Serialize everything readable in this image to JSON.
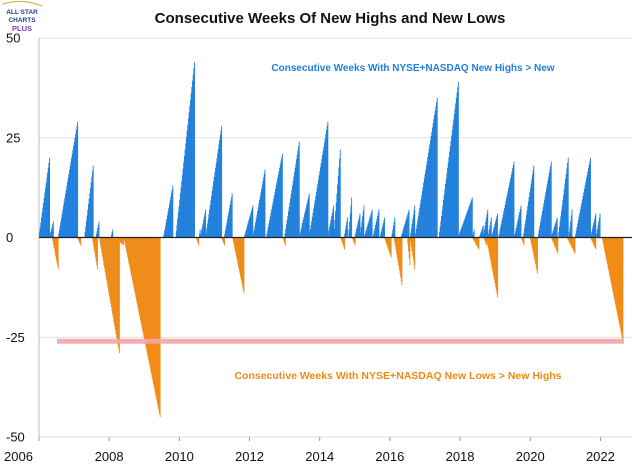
{
  "logo": {
    "line1": "ALL STAR",
    "line2": "CHARTS",
    "line3": "PLUS"
  },
  "chart_data": {
    "type": "bar",
    "title": "Consecutive Weeks Of New Highs and New Lows",
    "xlabel": "",
    "ylabel": "",
    "xlim": [
      2006.0,
      2022.9
    ],
    "ylim": [
      -50,
      50
    ],
    "x_ticks": [
      "2006",
      "2008",
      "2010",
      "2012",
      "2014",
      "2016",
      "2018",
      "2020",
      "2022"
    ],
    "y_ticks": [
      "50",
      "25",
      "0",
      "-25",
      "-50"
    ],
    "reference_line": {
      "value": -26,
      "color": "#f2a6a6"
    },
    "colors": {
      "positive": "#1f7fdc",
      "negative": "#f08a14",
      "zero_line": "#222222"
    },
    "annotations": {
      "positive": "Consecutive Weeks With NYSE+NASDAQ New Highs > New",
      "negative": "Consecutive Weeks With NYSE+NASDAQ New Lows > New Highs"
    },
    "series": [
      {
        "name": "Consecutive Weeks With NYSE+NASDAQ New Highs > New",
        "sign": 1,
        "runs": [
          [
            2006.0,
            2006.3,
            20
          ],
          [
            2006.3,
            2006.42,
            4
          ],
          [
            2006.55,
            2007.1,
            29
          ],
          [
            2007.3,
            2007.55,
            18
          ],
          [
            2007.62,
            2007.72,
            4
          ],
          [
            2008.05,
            2008.1,
            2
          ],
          [
            2009.55,
            2009.82,
            13
          ],
          [
            2009.9,
            2010.43,
            44
          ],
          [
            2010.56,
            2010.6,
            2
          ],
          [
            2010.6,
            2010.75,
            7
          ],
          [
            2010.75,
            2011.22,
            28
          ],
          [
            2011.28,
            2011.52,
            11
          ],
          [
            2011.85,
            2012.1,
            8
          ],
          [
            2012.1,
            2012.45,
            17
          ],
          [
            2012.48,
            2012.95,
            21
          ],
          [
            2013.0,
            2013.42,
            24
          ],
          [
            2013.42,
            2013.7,
            11
          ],
          [
            2013.7,
            2014.23,
            29
          ],
          [
            2014.23,
            2014.4,
            8
          ],
          [
            2014.4,
            2014.6,
            22
          ],
          [
            2014.7,
            2014.8,
            5
          ],
          [
            2014.82,
            2014.92,
            10
          ],
          [
            2015.0,
            2015.15,
            6
          ],
          [
            2015.15,
            2015.27,
            8
          ],
          [
            2015.27,
            2015.5,
            7
          ],
          [
            2015.52,
            2015.7,
            7
          ],
          [
            2015.72,
            2015.85,
            5
          ],
          [
            2016.05,
            2016.15,
            5
          ],
          [
            2016.32,
            2016.55,
            7
          ],
          [
            2016.58,
            2016.72,
            8
          ],
          [
            2016.72,
            2017.35,
            35
          ],
          [
            2017.4,
            2017.95,
            39
          ],
          [
            2017.95,
            2018.35,
            10
          ],
          [
            2018.35,
            2018.4,
            2
          ],
          [
            2018.55,
            2018.66,
            3
          ],
          [
            2018.66,
            2018.8,
            7
          ],
          [
            2018.8,
            2018.9,
            5
          ],
          [
            2018.9,
            2019.08,
            6
          ],
          [
            2019.1,
            2019.55,
            19
          ],
          [
            2019.55,
            2019.75,
            8
          ],
          [
            2019.8,
            2020.1,
            18
          ],
          [
            2020.22,
            2020.6,
            19
          ],
          [
            2020.6,
            2020.78,
            5
          ],
          [
            2020.8,
            2021.08,
            20
          ],
          [
            2021.1,
            2021.2,
            7
          ],
          [
            2021.28,
            2021.72,
            20
          ],
          [
            2021.72,
            2021.88,
            6
          ],
          [
            2021.88,
            2022.0,
            6
          ]
        ]
      },
      {
        "name": "Consecutive Weeks With NYSE+NASDAQ New Lows > New Highs",
        "sign": -1,
        "runs": [
          [
            2006.38,
            2006.55,
            8
          ],
          [
            2007.1,
            2007.2,
            2
          ],
          [
            2007.52,
            2007.68,
            8
          ],
          [
            2007.72,
            2008.3,
            29
          ],
          [
            2008.2,
            2008.42,
            2
          ],
          [
            2008.42,
            2009.45,
            45
          ],
          [
            2010.48,
            2010.56,
            2
          ],
          [
            2011.2,
            2011.3,
            2
          ],
          [
            2011.52,
            2011.85,
            14
          ],
          [
            2012.95,
            2013.02,
            2
          ],
          [
            2014.6,
            2014.72,
            3
          ],
          [
            2014.92,
            2015.02,
            2
          ],
          [
            2015.85,
            2016.05,
            5
          ],
          [
            2016.12,
            2016.35,
            12
          ],
          [
            2016.5,
            2016.58,
            7
          ],
          [
            2016.58,
            2016.72,
            8
          ],
          [
            2018.35,
            2018.55,
            3
          ],
          [
            2018.68,
            2018.75,
            2
          ],
          [
            2018.75,
            2019.08,
            15
          ],
          [
            2019.75,
            2019.82,
            2
          ],
          [
            2020.0,
            2020.22,
            9
          ],
          [
            2020.6,
            2020.8,
            4
          ],
          [
            2021.05,
            2021.28,
            4
          ],
          [
            2021.72,
            2021.88,
            3
          ],
          [
            2022.05,
            2022.65,
            26
          ]
        ]
      }
    ]
  }
}
